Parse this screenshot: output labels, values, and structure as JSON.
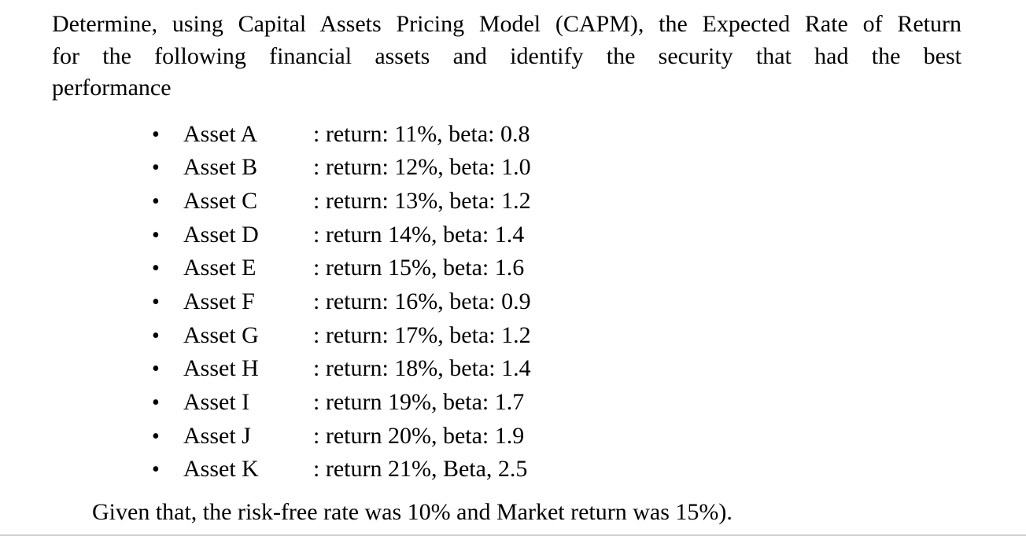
{
  "page": {
    "intro_lines": [
      "Determine, using Capital Assets Pricing Model (CAPM), the Expected Rate of Return",
      "for the following financial assets and identify the security that had the best",
      "performance"
    ],
    "bullet_glyph": "•",
    "assets": [
      {
        "name": "Asset A",
        "detail": ": return: 11%, beta: 0.8"
      },
      {
        "name": "Asset B",
        "detail": ": return: 12%, beta: 1.0"
      },
      {
        "name": "Asset C",
        "detail": ": return: 13%, beta: 1.2"
      },
      {
        "name": "Asset D",
        "detail": ": return 14%, beta: 1.4"
      },
      {
        "name": "Asset E",
        "detail": ": return 15%, beta: 1.6"
      },
      {
        "name": "Asset F",
        "detail": ": return: 16%, beta: 0.9"
      },
      {
        "name": "Asset G",
        "detail": ": return: 17%, beta: 1.2"
      },
      {
        "name": "Asset H",
        "detail": ": return: 18%, beta: 1.4"
      },
      {
        "name": "Asset I",
        "detail": ": return 19%, beta: 1.7"
      },
      {
        "name": "Asset J",
        "detail": ": return 20%, beta: 1.9"
      },
      {
        "name": "Asset K",
        "detail": ": return 21%, Beta, 2.5"
      }
    ],
    "footer": "Given that, the risk-free rate was 10% and Market return was 15%).",
    "colors": {
      "text": "#000000",
      "background": "#ffffff",
      "bottom_divider": "#cfcfcf"
    }
  }
}
